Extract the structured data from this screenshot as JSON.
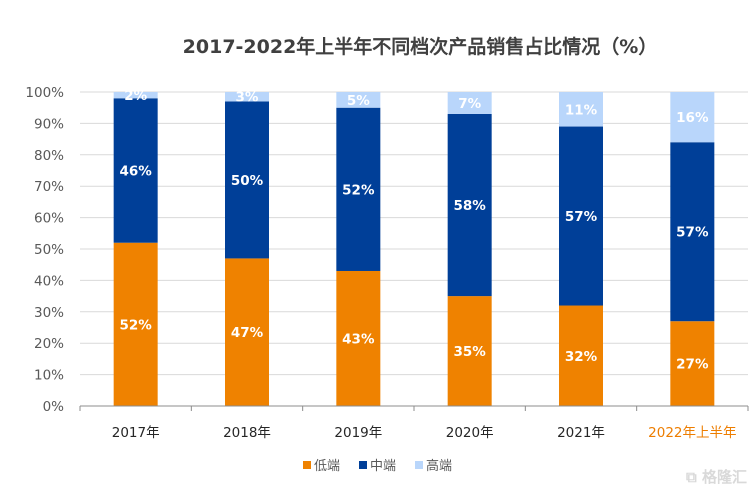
{
  "chart_data": {
    "type": "bar",
    "stacked": true,
    "title": "2017-2022年上半年不同档次产品销售占比情况（%）",
    "xlabel": "",
    "ylabel": "",
    "ylim": [
      0,
      100
    ],
    "yticks": [
      "0%",
      "10%",
      "20%",
      "30%",
      "40%",
      "50%",
      "60%",
      "70%",
      "80%",
      "90%",
      "100%"
    ],
    "categories": [
      "2017年",
      "2018年",
      "2019年",
      "2020年",
      "2021年",
      "2022年上半年"
    ],
    "highlight_category_color": "#ED7D00",
    "grid": true,
    "legend_position": "bottom",
    "series": [
      {
        "name": "低端",
        "color": "#EF8200",
        "values": [
          52,
          47,
          43,
          35,
          32,
          27
        ],
        "labels": [
          "52%",
          "47%",
          "43%",
          "35%",
          "32%",
          "27%"
        ]
      },
      {
        "name": "中端",
        "color": "#003F98",
        "values": [
          46,
          50,
          52,
          58,
          57,
          57
        ],
        "labels": [
          "46%",
          "50%",
          "52%",
          "58%",
          "57%",
          "57%"
        ]
      },
      {
        "name": "高端",
        "color": "#B9D6FB",
        "values": [
          2,
          3,
          5,
          7,
          11,
          16
        ],
        "labels": [
          "2%",
          "3%",
          "5%",
          "7%",
          "11%",
          "16%"
        ]
      }
    ]
  },
  "watermark": "格隆汇"
}
